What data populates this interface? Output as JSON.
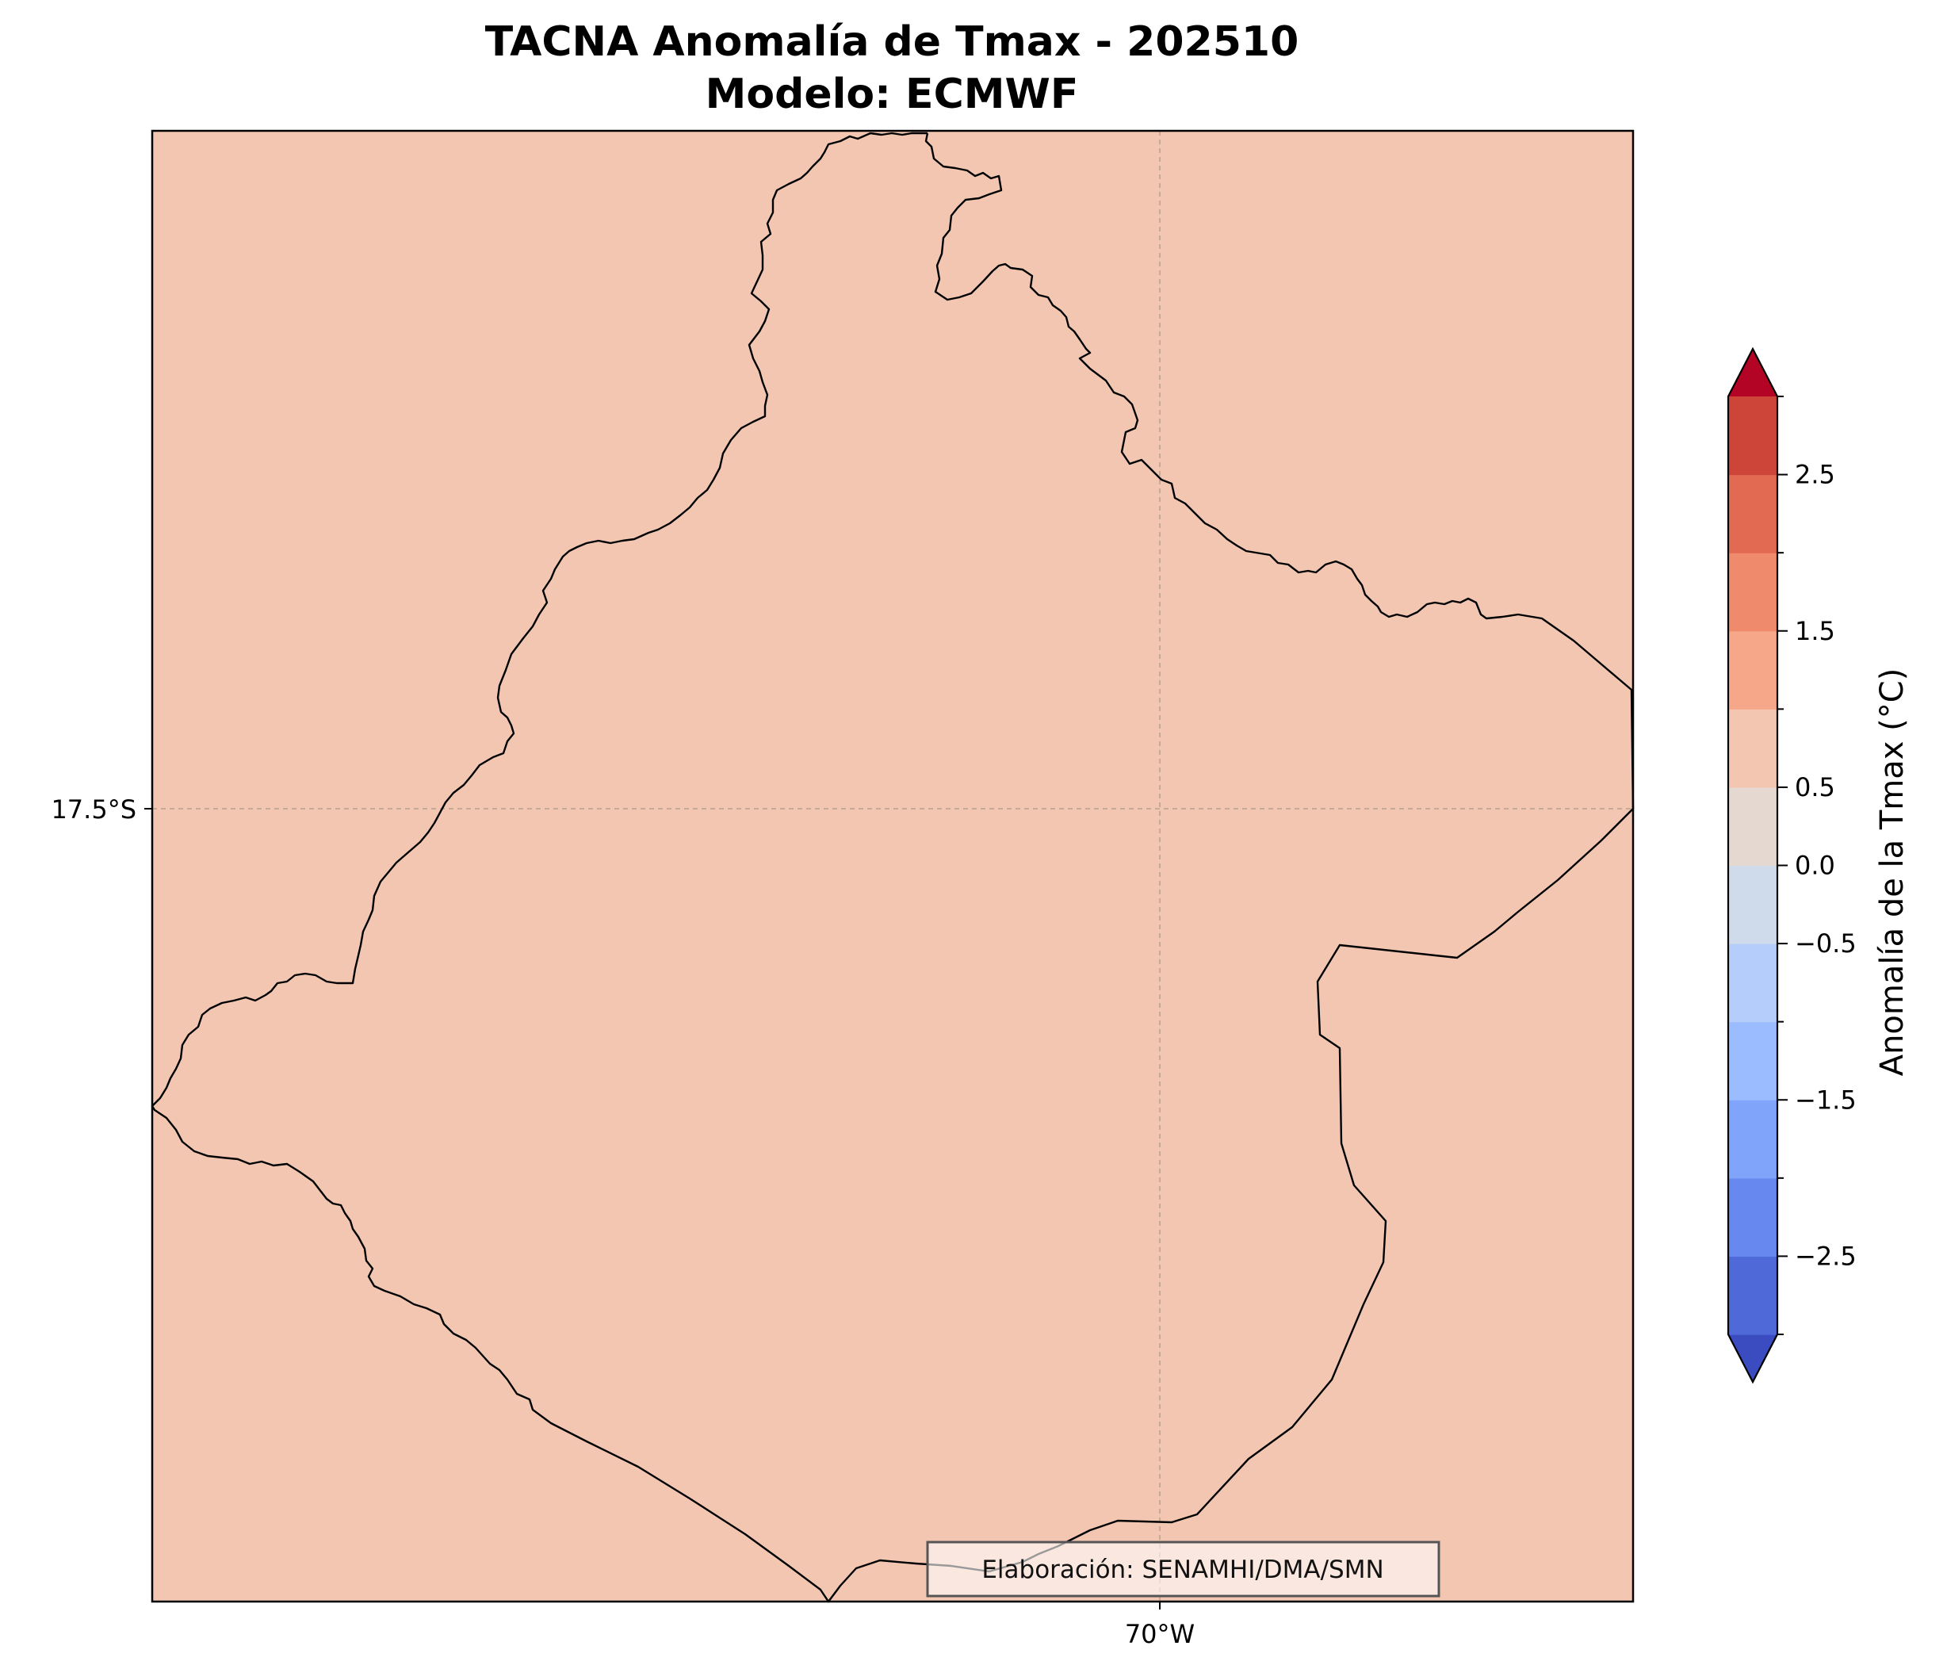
{
  "title": {
    "line1": "TACNA Anomalía de Tmax - 202510",
    "line2": "Modelo: ECMWF"
  },
  "map": {
    "fill_color": "#f2c6b1",
    "frame_color": "#000000",
    "gridline_color": "#b8a08f",
    "lat_label": "17.5°S",
    "lon_label": "70°W",
    "credit": "Elaboración: SENAMHI/DMA/SMN"
  },
  "colorbar": {
    "label": "Anomalía de la Tmax (°C)",
    "extend": "both",
    "levels": [
      -3.0,
      -2.5,
      -2.0,
      -1.5,
      -1.0,
      -0.5,
      0.0,
      0.5,
      1.0,
      1.5,
      2.0,
      2.5,
      3.0
    ],
    "colors": [
      "#3b4cc0",
      "#4f69d9",
      "#6788ee",
      "#81a4fb",
      "#9bbcff",
      "#b5cdfa",
      "#cfdaea",
      "#e5d8d1",
      "#f2c6b1",
      "#f6a789",
      "#f08a6c",
      "#e26952",
      "#cd4539",
      "#b40426"
    ],
    "tick_values": [
      -2.5,
      -1.5,
      -0.5,
      0.0,
      0.5,
      1.5,
      2.5
    ],
    "tick_labels": [
      "−2.5",
      "−1.5",
      "−0.5",
      "0.0",
      "0.5",
      "1.5",
      "2.5"
    ],
    "minor_ticks": [
      -3.0,
      -2.0,
      -1.0,
      1.0,
      2.0,
      3.0
    ],
    "anomaly_value_shown": 0.75
  }
}
